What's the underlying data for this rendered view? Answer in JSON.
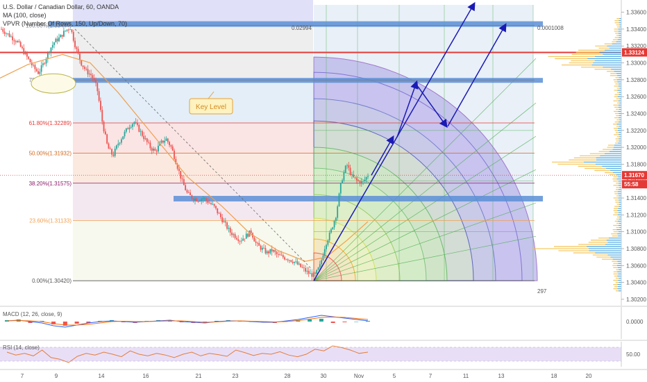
{
  "header": {
    "symbol_line": "U.S. Dollar / Canadian Dollar, 60, OANDA",
    "ma_line": "MA (100, close)",
    "vpvr_line": "VPVR (Number Of Rows, 150, Up/Down, 70)"
  },
  "colors": {
    "up_candle": "#26a69a",
    "down_candle": "#ef5350",
    "ma_line": "#f0a050",
    "key_level": "#5b8fd6",
    "red_level": "#e53935",
    "arrow": "#1a1ab5",
    "gann_fan": "#4caf50"
  },
  "chart_data": {
    "type": "candlestick",
    "price_axis": {
      "ticks": [
        "1.33600",
        "1.33400",
        "1.33200",
        "1.33000",
        "1.32800",
        "1.32600",
        "1.32400",
        "1.32200",
        "1.32000",
        "1.31800",
        "1.31600",
        "1.31400",
        "1.31200",
        "1.31000",
        "1.30800",
        "1.30600",
        "1.30400",
        "1.30200"
      ],
      "ylim": [
        1.3015,
        1.3372
      ]
    },
    "time_axis": {
      "ticks": [
        "7",
        "9",
        "14",
        "16",
        "21",
        "23",
        "28",
        "30",
        "Nov",
        "5",
        "7",
        "11",
        "13",
        "18",
        "20"
      ]
    },
    "fib_levels": [
      {
        "label": "100.00%(1.33444)",
        "price": 1.33444,
        "color": "#787b86"
      },
      {
        "label": "78.60%(1.32797)",
        "price": 1.32797,
        "color": "#787b86"
      },
      {
        "label": "61.80%(1.32289)",
        "price": 1.32289,
        "color": "#e53935"
      },
      {
        "label": "50.00%(1.31932)",
        "price": 1.31932,
        "color": "#d2691e"
      },
      {
        "label": "38.20%(1.31575)",
        "price": 1.31575,
        "color": "#8b1a6b"
      },
      {
        "label": "23.60%(1.31133)",
        "price": 1.31133,
        "color": "#f0a050"
      },
      {
        "label": "0.00%(1.30420)",
        "price": 1.3042,
        "color": "#555555"
      }
    ],
    "price_badges": [
      {
        "value": "1.33124",
        "color": "#e53935"
      },
      {
        "value": "1.31670",
        "color": "#e53935"
      },
      {
        "value": "55:58",
        "color": "#e53935"
      }
    ],
    "annotations": {
      "key_level": "Key Level",
      "range_top_left": "0.02994",
      "range_top_right": "0.0001008",
      "range_bottom_right": "297"
    },
    "ohlc_path": [
      1.334,
      1.3335,
      1.333,
      1.3325,
      1.3315,
      1.3305,
      1.3295,
      1.3288,
      1.33,
      1.3315,
      1.3325,
      1.333,
      1.3338,
      1.3342,
      1.3318,
      1.33,
      1.329,
      1.3285,
      1.327,
      1.323,
      1.32,
      1.319,
      1.3205,
      1.3215,
      1.3225,
      1.323,
      1.322,
      1.321,
      1.32,
      1.3195,
      1.3205,
      1.321,
      1.32,
      1.318,
      1.316,
      1.3145,
      1.314,
      1.3138,
      1.314,
      1.3135,
      1.313,
      1.312,
      1.311,
      1.31,
      1.3095,
      1.309,
      1.3095,
      1.31,
      1.3085,
      1.308,
      1.3075,
      1.3078,
      1.3072,
      1.307,
      1.3068,
      1.3065,
      1.306,
      1.3055,
      1.305,
      1.3048,
      1.306,
      1.3085,
      1.31,
      1.312,
      1.316,
      1.318,
      1.3165,
      1.316,
      1.3158,
      1.3167
    ],
    "macd": {
      "label": "MACD (12, 26, close, 9)",
      "axis_ticks": [
        "0.0000"
      ],
      "histogram": [
        0.2,
        0.3,
        -0.2,
        0.1,
        -0.4,
        -0.6,
        -0.3,
        -0.2,
        0.1,
        0.2,
        -0.1,
        -0.2,
        0.1,
        0.2,
        0.1,
        -0.1,
        -0.2,
        -0.1,
        0.1,
        0.2,
        0.1,
        0.0,
        -0.1,
        -0.2,
        0.1,
        0.2,
        0.3,
        0.4,
        -0.2,
        -0.1,
        0.0,
        0.1
      ],
      "macd_line": [
        0.1,
        0.2,
        0.0,
        -0.2,
        -0.6,
        -0.8,
        -0.5,
        -0.2,
        0.0,
        0.1,
        0.0,
        -0.1,
        0.0,
        0.1,
        0.2,
        0.0,
        -0.1,
        -0.2,
        0.0,
        0.1,
        0.1,
        0.0,
        -0.1,
        -0.1,
        0.1,
        0.3,
        0.6,
        0.9,
        0.7,
        0.5,
        0.3,
        0.1
      ],
      "signal_line": [
        0.1,
        0.15,
        0.1,
        0.0,
        -0.3,
        -0.5,
        -0.5,
        -0.4,
        -0.2,
        0.0,
        0.05,
        0.0,
        0.0,
        0.05,
        0.1,
        0.1,
        0.0,
        -0.1,
        -0.05,
        0.05,
        0.1,
        0.05,
        0.0,
        -0.05,
        0.0,
        0.15,
        0.35,
        0.6,
        0.65,
        0.6,
        0.45,
        0.3
      ]
    },
    "rsi": {
      "label": "RSI (14, close)",
      "axis_ticks": [
        "50.00"
      ],
      "values": [
        55,
        48,
        52,
        46,
        60,
        42,
        38,
        30,
        45,
        52,
        48,
        55,
        50,
        44,
        58,
        50,
        46,
        52,
        48,
        42,
        50,
        55,
        46,
        52,
        49,
        45,
        60,
        54,
        47,
        52,
        50,
        56,
        48,
        44,
        50,
        62,
        58,
        70,
        66,
        60,
        52,
        55
      ]
    }
  }
}
